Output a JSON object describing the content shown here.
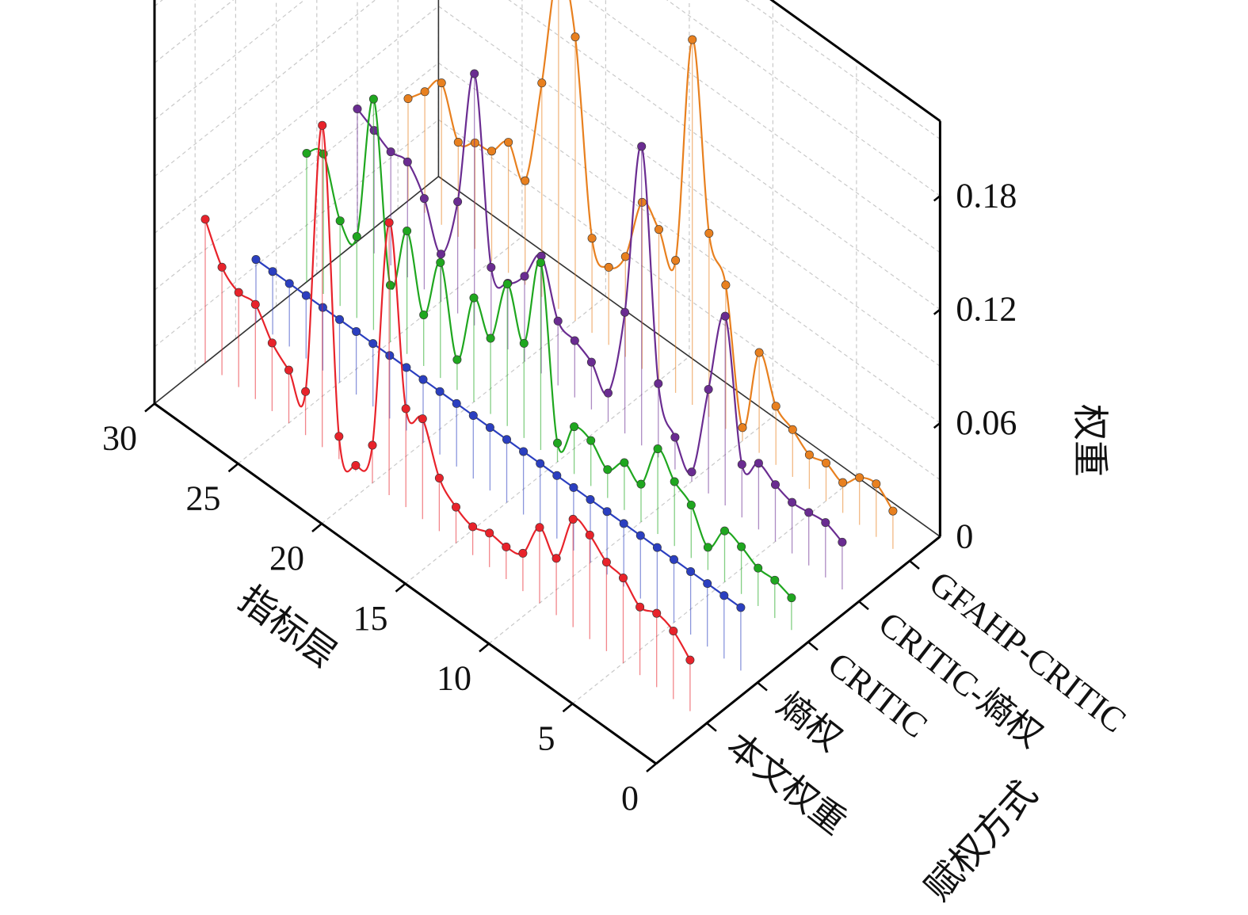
{
  "chart_data": {
    "type": "3d-waterfall-line",
    "xlabel": "指标层",
    "ylabel": "赋权方式",
    "zlabel": "权重",
    "x_ticks": [
      "0",
      "5",
      "10",
      "15",
      "20",
      "25",
      "30"
    ],
    "z_ticks": [
      "0",
      "0.06",
      "0.12",
      "0.18"
    ],
    "z_range": [
      0,
      0.18
    ],
    "x_range": [
      0,
      30
    ],
    "grid": true,
    "series": [
      {
        "name": "本文权重",
        "color": "#e8232b",
        "values": [
          0.027,
          0.036,
          0.039,
          0.036,
          0.045,
          0.047,
          0.055,
          0.057,
          0.03,
          0.04,
          0.02,
          0.017,
          0.018,
          0.015,
          0.019,
          0.028,
          0.053,
          0.052,
          0.144,
          0.02,
          0.003,
          0.012,
          0.17,
          0.023,
          0.028,
          0.036,
          0.05,
          0.05,
          0.057,
          0.076
        ]
      },
      {
        "name": "熵权",
        "color": "#2b3fc0",
        "values": [
          0.0333,
          0.0333,
          0.0333,
          0.0333,
          0.0333,
          0.0333,
          0.0333,
          0.0333,
          0.0333,
          0.0333,
          0.0333,
          0.0333,
          0.0333,
          0.0333,
          0.0333,
          0.0333,
          0.0333,
          0.0333,
          0.0333,
          0.0333,
          0.0333,
          0.0333,
          0.0333,
          0.0333,
          0.0333,
          0.0333,
          0.0333,
          0.0333,
          0.0333,
          0.0333
        ]
      },
      {
        "name": "CRITIC",
        "color": "#1fa71f",
        "values": [
          0.017,
          0.02,
          0.02,
          0.025,
          0.027,
          0.012,
          0.028,
          0.034,
          0.045,
          0.02,
          0.025,
          0.015,
          0.024,
          0.025,
          0.01,
          0.099,
          0.05,
          0.075,
          0.04,
          0.055,
          0.016,
          0.061,
          0.027,
          0.065,
          0.03,
          0.122,
          0.043,
          0.045,
          0.074,
          0.068
        ]
      },
      {
        "name": "CRITIC-熵权",
        "color": "#6a2c91",
        "values": [
          0.025,
          0.029,
          0.028,
          0.027,
          0.03,
          0.035,
          0.028,
          0.1,
          0.055,
          0.005,
          0.017,
          0.039,
          0.158,
          0.064,
          0.015,
          0.025,
          0.03,
          0.034,
          0.062,
          0.045,
          0.035,
          0.037,
          0.133,
          0.059,
          0.025,
          0.048,
          0.061,
          0.06,
          0.065,
          0.07
        ]
      },
      {
        "name": "GFAHP-CRITIC",
        "color": "#e8801f",
        "values": [
          0.02,
          0.028,
          0.025,
          0.016,
          0.02,
          0.018,
          0.025,
          0.031,
          0.053,
          0.007,
          0.076,
          0.097,
          0.193,
          0.07,
          0.08,
          0.088,
          0.053,
          0.041,
          0.05,
          0.15,
          0.18,
          0.113,
          0.055,
          0.069,
          0.058,
          0.056,
          0.05,
          0.075,
          0.064,
          0.054
        ]
      }
    ]
  }
}
